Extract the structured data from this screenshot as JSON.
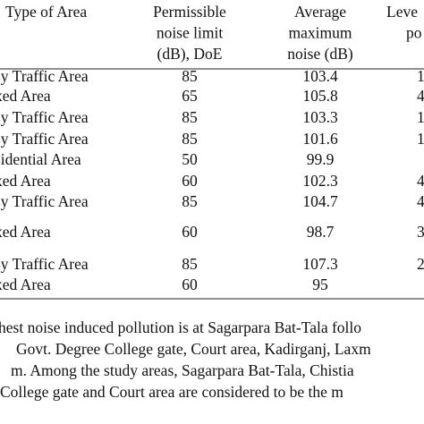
{
  "table": {
    "header": [
      "Type of Area",
      [
        "Permissible",
        "noise limit",
        "(dB), DoE"
      ],
      [
        "Average",
        "maximum",
        "noise (dB)"
      ],
      [
        "Leve",
        "po"
      ]
    ],
    "rows": [
      [
        "sy Traffic Area",
        "85",
        "103.4",
        "1"
      ],
      [
        "xed Area",
        "65",
        "105.8",
        "4"
      ],
      [
        "sy Traffic Area",
        "85",
        "103.3",
        "1"
      ],
      [
        "sy Traffic Area",
        "85",
        "101.6",
        "1"
      ],
      [
        "sidential Area",
        "50",
        "99.9",
        ""
      ],
      [
        "xed Area",
        "60",
        "102.3",
        "4"
      ],
      [
        "sy Traffic Area",
        "85",
        "104.7",
        "4"
      ],
      [
        "xed Area",
        "60",
        "98.7",
        "3"
      ],
      [
        "sy Traffic Area",
        "85",
        "107.3",
        "2"
      ],
      [
        "xed Area",
        "60",
        "95",
        ""
      ]
    ]
  },
  "paragraph": [
    "hest noise induced pollution is at Sagarpara Bat-Tala follo",
    "Govt. Degree College gate, Court area, Kadirganj, Laxm",
    "m. Among the study areas, Sagarpara Bat-Tala, Chistia",
    "College gate and Court area are considered to be the m"
  ]
}
